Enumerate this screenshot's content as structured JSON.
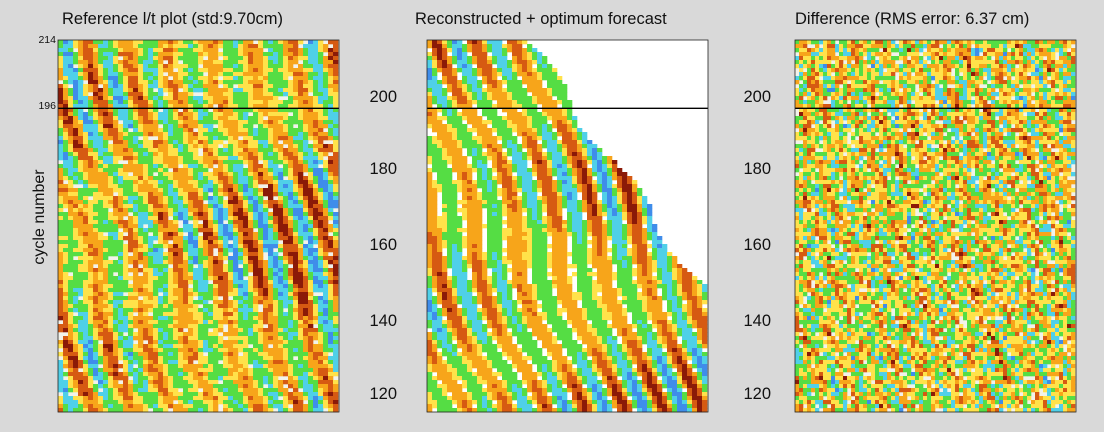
{
  "chart_data": [
    {
      "type": "heatmap",
      "title": "Reference l/t plot (std:9.70cm)",
      "ylabel": "cycle number",
      "yticks": [
        "214",
        "196"
      ],
      "ylim": [
        116,
        214
      ],
      "marker_line_cycle": 196,
      "fill_fraction": 1.0,
      "colorscale": [
        "#3f8dea",
        "#4fd0e8",
        "#55dd44",
        "#ffe24a",
        "#f7a51a",
        "#d65a12",
        "#8b1a08"
      ]
    },
    {
      "type": "heatmap",
      "title": "Reconstructed + optimum forecast",
      "yticks": [
        "200",
        "180",
        "160",
        "140",
        "120"
      ],
      "ylim": [
        116,
        214
      ],
      "marker_line_cycle": 196,
      "fill_fraction": 0.72,
      "colorscale": [
        "#3f8dea",
        "#4fd0e8",
        "#55dd44",
        "#ffe24a",
        "#f7a51a",
        "#d65a12",
        "#8b1a08"
      ]
    },
    {
      "type": "heatmap",
      "title": "Difference (RMS error: 6.37 cm)",
      "yticks": [
        "200",
        "180",
        "160",
        "140",
        "120"
      ],
      "ylim": [
        116,
        214
      ],
      "marker_line_cycle": 196,
      "fill_fraction": 0.9,
      "colorscale": [
        "#3f8dea",
        "#4fd0e8",
        "#55dd44",
        "#ffe24a",
        "#f7a51a",
        "#d65a12",
        "#8b1a08"
      ]
    }
  ]
}
